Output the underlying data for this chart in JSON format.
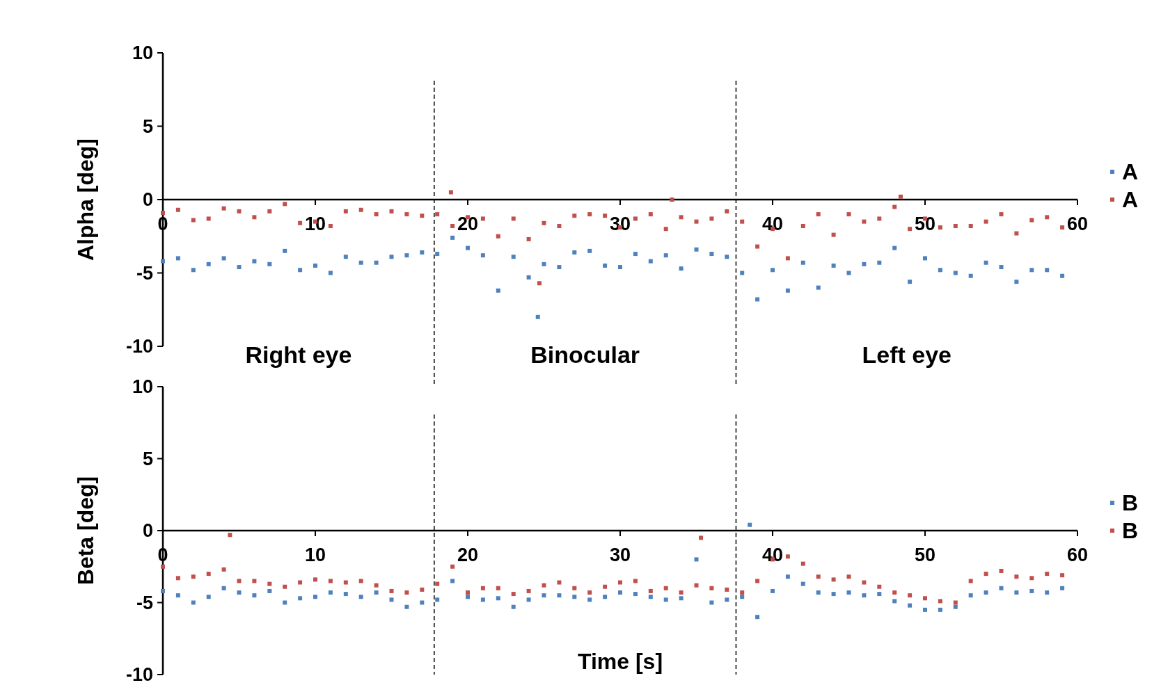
{
  "chart_data": [
    {
      "type": "scatter",
      "ylabel": "Alpha [deg]",
      "xlim": [
        0,
        60
      ],
      "xticks": [
        0,
        10,
        20,
        30,
        40,
        50,
        60
      ],
      "ylim": [
        -10,
        10
      ],
      "yticks": [
        -10,
        -5,
        0,
        5,
        10
      ],
      "grid": false,
      "legend": "right",
      "marker": "square",
      "ref_lines": [
        {
          "axis": "x",
          "value": 17.8,
          "line_style": "dashed",
          "color": "#000000"
        },
        {
          "axis": "x",
          "value": 37.6,
          "line_style": "dashed",
          "color": "#000000"
        }
      ],
      "annotations": [
        "Right eye",
        "Binocular",
        "Left eye"
      ],
      "series": [
        {
          "name": "A",
          "color": "#4f81bd",
          "x": [
            0,
            1,
            2,
            3,
            4,
            5,
            6,
            7,
            8,
            9,
            10,
            11,
            12,
            13,
            14,
            15,
            16,
            17,
            18,
            19,
            20,
            21,
            22,
            23,
            24,
            25,
            26,
            27,
            28,
            29,
            30,
            31,
            32,
            33,
            34,
            35,
            36,
            37,
            38,
            39,
            40,
            41,
            42,
            43,
            44,
            45,
            46,
            47,
            48,
            49,
            50,
            51,
            52,
            53,
            54,
            55,
            56,
            57,
            58,
            59,
            24.6
          ],
          "values": [
            -4.2,
            -4.0,
            -4.8,
            -4.4,
            -4.0,
            -4.6,
            -4.2,
            -4.4,
            -3.5,
            -4.8,
            -4.5,
            -5.0,
            -3.9,
            -4.3,
            -4.3,
            -3.9,
            -3.8,
            -3.6,
            -3.7,
            -2.6,
            -3.3,
            -3.8,
            -6.2,
            -3.9,
            -5.3,
            -4.4,
            -4.6,
            -3.6,
            -3.5,
            -4.5,
            -4.6,
            -3.7,
            -4.2,
            -3.8,
            -4.7,
            -3.4,
            -3.7,
            -3.9,
            -5.0,
            -6.8,
            -4.8,
            -6.2,
            -4.3,
            -6.0,
            -4.5,
            -5.0,
            -4.4,
            -4.3,
            -3.3,
            -5.6,
            -4.0,
            -4.8,
            -5.0,
            -5.2,
            -4.3,
            -4.6,
            -5.6,
            -4.8,
            -4.8,
            -5.2,
            -8.0
          ]
        },
        {
          "name": "A",
          "color": "#c0504d",
          "x": [
            0,
            1,
            2,
            3,
            4,
            5,
            6,
            7,
            8,
            9,
            10,
            11,
            12,
            13,
            14,
            15,
            16,
            17,
            18,
            19,
            20,
            21,
            22,
            23,
            24,
            25,
            26,
            27,
            28,
            29,
            30,
            31,
            32,
            33,
            34,
            35,
            36,
            37,
            38,
            39,
            40,
            41,
            42,
            43,
            44,
            45,
            46,
            47,
            48,
            49,
            50,
            51,
            52,
            53,
            54,
            55,
            56,
            57,
            58,
            59,
            18.9,
            33.4,
            48.4,
            24.7
          ],
          "values": [
            -0.9,
            -0.7,
            -1.4,
            -1.3,
            -0.6,
            -0.8,
            -1.2,
            -0.8,
            -0.3,
            -1.6,
            -1.5,
            -1.8,
            -0.8,
            -0.7,
            -1.0,
            -0.8,
            -1.0,
            -1.1,
            -1.0,
            -1.8,
            -1.2,
            -1.3,
            -2.5,
            -1.3,
            -2.7,
            -1.6,
            -1.8,
            -1.1,
            -1.0,
            -1.1,
            -1.9,
            -1.3,
            -1.0,
            -2.0,
            -1.2,
            -1.5,
            -1.3,
            -0.8,
            -1.5,
            -3.2,
            -2.0,
            -4.0,
            -1.8,
            -1.0,
            -2.4,
            -1.0,
            -1.5,
            -1.3,
            -0.5,
            -2.0,
            -1.3,
            -1.9,
            -1.8,
            -1.8,
            -1.5,
            -1.0,
            -2.3,
            -1.4,
            -1.2,
            -1.9,
            0.5,
            0.0,
            0.2,
            -5.7
          ]
        }
      ]
    },
    {
      "type": "scatter",
      "ylabel": "Beta [deg]",
      "xlabel": "Time [s]",
      "xlim": [
        0,
        60
      ],
      "xticks": [
        0,
        10,
        20,
        30,
        40,
        50,
        60
      ],
      "ylim": [
        -10,
        10
      ],
      "yticks": [
        -10,
        -5,
        0,
        5,
        10
      ],
      "grid": false,
      "legend": "right",
      "marker": "square",
      "ref_lines": [
        {
          "axis": "x",
          "value": 17.8,
          "line_style": "dashed",
          "color": "#000000"
        },
        {
          "axis": "x",
          "value": 37.6,
          "line_style": "dashed",
          "color": "#000000"
        }
      ],
      "series": [
        {
          "name": "B",
          "color": "#4f81bd",
          "x": [
            0,
            1,
            2,
            3,
            4,
            5,
            6,
            7,
            8,
            9,
            10,
            11,
            12,
            13,
            14,
            15,
            16,
            17,
            18,
            19,
            20,
            21,
            22,
            23,
            24,
            25,
            26,
            27,
            28,
            29,
            30,
            31,
            32,
            33,
            34,
            35,
            36,
            37,
            38,
            39,
            40,
            41,
            42,
            43,
            44,
            45,
            46,
            47,
            48,
            49,
            50,
            51,
            52,
            53,
            54,
            55,
            56,
            57,
            58,
            59,
            38.5
          ],
          "values": [
            -4.2,
            -4.5,
            -5.0,
            -4.6,
            -4.0,
            -4.3,
            -4.5,
            -4.2,
            -5.0,
            -4.7,
            -4.6,
            -4.3,
            -4.4,
            -4.6,
            -4.3,
            -4.8,
            -5.3,
            -5.0,
            -4.8,
            -3.5,
            -4.6,
            -4.8,
            -4.7,
            -5.3,
            -4.8,
            -4.5,
            -4.5,
            -4.6,
            -4.8,
            -4.6,
            -4.3,
            -4.4,
            -4.6,
            -4.8,
            -4.7,
            -2.0,
            -5.0,
            -4.8,
            -4.6,
            -6.0,
            -4.2,
            -3.2,
            -3.7,
            -4.3,
            -4.4,
            -4.3,
            -4.5,
            -4.4,
            -4.9,
            -5.2,
            -5.5,
            -5.5,
            -5.3,
            -4.5,
            -4.3,
            -4.0,
            -4.3,
            -4.2,
            -4.3,
            -4.0,
            0.4
          ]
        },
        {
          "name": "B",
          "color": "#c0504d",
          "x": [
            0,
            1,
            2,
            3,
            4,
            5,
            6,
            7,
            8,
            9,
            10,
            11,
            12,
            13,
            14,
            15,
            16,
            17,
            18,
            19,
            20,
            21,
            22,
            23,
            24,
            25,
            26,
            27,
            28,
            29,
            30,
            31,
            32,
            33,
            34,
            35,
            36,
            37,
            38,
            39,
            40,
            41,
            42,
            43,
            44,
            45,
            46,
            47,
            48,
            49,
            50,
            51,
            52,
            53,
            54,
            55,
            56,
            57,
            58,
            59,
            4.4,
            35.3
          ],
          "values": [
            -2.5,
            -3.3,
            -3.2,
            -3.0,
            -2.7,
            -3.5,
            -3.5,
            -3.7,
            -3.9,
            -3.6,
            -3.4,
            -3.5,
            -3.6,
            -3.5,
            -3.8,
            -4.2,
            -4.3,
            -4.1,
            -3.7,
            -2.5,
            -4.3,
            -4.0,
            -4.0,
            -4.4,
            -4.2,
            -3.8,
            -3.6,
            -4.0,
            -4.3,
            -3.9,
            -3.6,
            -3.5,
            -4.2,
            -4.0,
            -4.3,
            -3.8,
            -4.0,
            -4.1,
            -4.3,
            -3.5,
            -2.0,
            -1.8,
            -2.3,
            -3.2,
            -3.4,
            -3.2,
            -3.6,
            -3.9,
            -4.3,
            -4.5,
            -4.7,
            -4.9,
            -5.0,
            -3.5,
            -3.0,
            -2.8,
            -3.2,
            -3.3,
            -3.0,
            -3.1,
            -0.3,
            -0.5
          ]
        }
      ]
    }
  ]
}
